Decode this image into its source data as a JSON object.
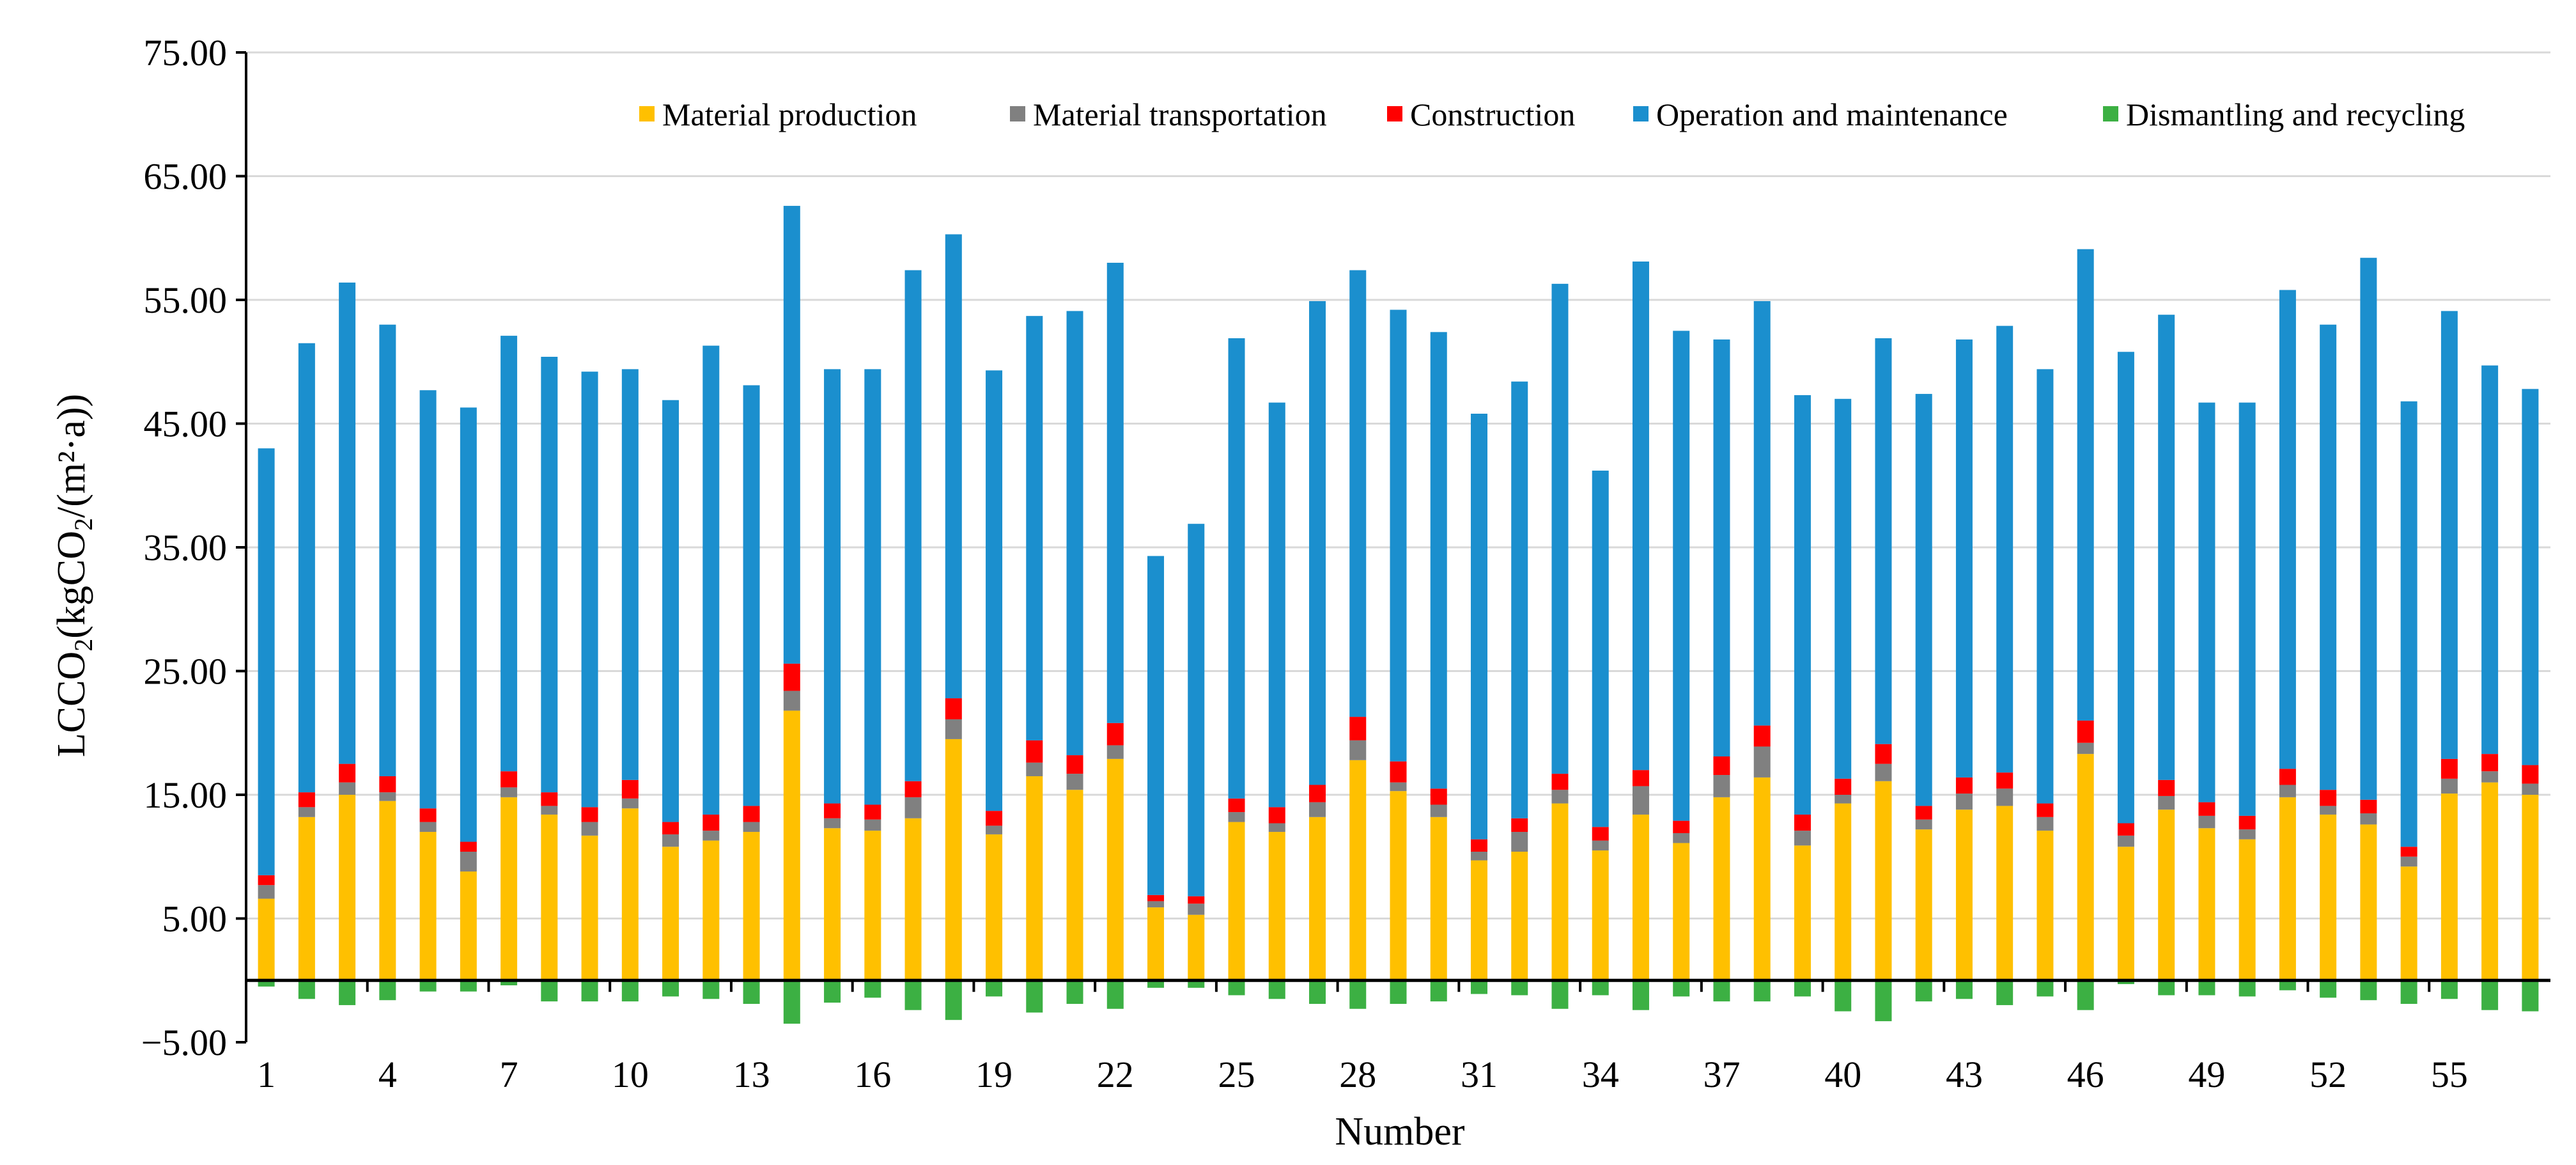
{
  "chart_data": {
    "type": "bar",
    "stacked": true,
    "xlabel": "Number",
    "ylabel_parts": {
      "prefix": "LCCO",
      "sub1": "2",
      "mid": "(kgCO",
      "sub2": "2",
      "suffix": "/(m²·a))"
    },
    "ylim": [
      -5,
      75
    ],
    "yticks": [
      -5,
      5,
      15,
      25,
      35,
      45,
      55,
      65,
      75
    ],
    "ytick_labels": [
      "−5.00",
      "5.00",
      "15.00",
      "25.00",
      "35.00",
      "45.00",
      "55.00",
      "65.00",
      "75.00"
    ],
    "grid": true,
    "legend_position": "top-right",
    "categories": [
      1,
      2,
      3,
      4,
      5,
      6,
      7,
      8,
      9,
      10,
      11,
      12,
      13,
      14,
      15,
      16,
      17,
      18,
      19,
      20,
      21,
      22,
      23,
      24,
      25,
      26,
      27,
      28,
      29,
      30,
      31,
      32,
      33,
      34,
      35,
      36,
      37,
      38,
      39,
      40,
      41,
      42,
      43,
      44,
      45,
      46,
      47,
      48,
      49,
      50,
      51,
      52,
      53,
      54,
      55,
      56,
      57
    ],
    "xtick_labels": [
      "1",
      "4",
      "7",
      "10",
      "13",
      "16",
      "19",
      "22",
      "25",
      "28",
      "31",
      "34",
      "37",
      "40",
      "43",
      "46",
      "49",
      "52",
      "55"
    ],
    "xtick_indices": [
      0,
      3,
      6,
      9,
      12,
      15,
      18,
      21,
      24,
      27,
      30,
      33,
      36,
      39,
      42,
      45,
      48,
      51,
      54
    ],
    "series": [
      {
        "name": "Material production",
        "color": "#FFC000",
        "values": [
          6.6,
          13.2,
          15.0,
          14.5,
          12.0,
          8.8,
          14.8,
          13.4,
          11.7,
          13.9,
          10.8,
          11.3,
          12.0,
          21.8,
          12.3,
          12.1,
          13.1,
          19.5,
          11.8,
          16.5,
          15.4,
          17.9,
          5.9,
          5.3,
          12.8,
          12.0,
          13.2,
          17.8,
          15.3,
          13.2,
          9.7,
          10.4,
          14.3,
          10.5,
          13.4,
          11.1,
          14.8,
          16.4,
          10.9,
          14.3,
          16.1,
          12.2,
          13.8,
          14.1,
          12.1,
          18.3,
          10.8,
          13.8,
          12.3,
          11.4,
          14.8,
          13.4,
          12.6,
          9.2,
          15.1,
          16.0,
          15.0
        ]
      },
      {
        "name": "Material transportation",
        "color": "#808080",
        "values": [
          1.1,
          0.8,
          1.0,
          0.7,
          0.8,
          1.6,
          0.8,
          0.7,
          1.1,
          0.8,
          1.0,
          0.8,
          0.8,
          1.6,
          0.8,
          0.9,
          1.7,
          1.6,
          0.7,
          1.1,
          1.3,
          1.1,
          0.5,
          0.9,
          0.8,
          0.7,
          1.2,
          1.6,
          0.7,
          1.0,
          0.7,
          1.6,
          1.1,
          0.8,
          2.3,
          0.8,
          1.8,
          2.5,
          1.2,
          0.7,
          1.4,
          0.8,
          1.3,
          1.4,
          1.1,
          0.9,
          0.9,
          1.1,
          1.0,
          0.8,
          1.0,
          0.7,
          0.9,
          0.8,
          1.2,
          0.9,
          0.9
        ]
      },
      {
        "name": "Construction",
        "color": "#FF0000",
        "values": [
          0.8,
          1.2,
          1.5,
          1.3,
          1.1,
          0.8,
          1.3,
          1.1,
          1.2,
          1.5,
          1.0,
          1.3,
          1.3,
          2.2,
          1.2,
          1.2,
          1.3,
          1.7,
          1.2,
          1.8,
          1.5,
          1.8,
          0.5,
          0.6,
          1.1,
          1.3,
          1.4,
          1.9,
          1.7,
          1.3,
          1.0,
          1.1,
          1.3,
          1.1,
          1.3,
          1.0,
          1.5,
          1.7,
          1.3,
          1.3,
          1.6,
          1.1,
          1.3,
          1.3,
          1.1,
          1.8,
          1.0,
          1.3,
          1.1,
          1.1,
          1.3,
          1.3,
          1.1,
          0.8,
          1.6,
          1.4,
          1.5
        ]
      },
      {
        "name": "Operation and maintenance",
        "color": "#1B8FCE",
        "values": [
          34.5,
          36.3,
          38.9,
          36.5,
          33.8,
          35.1,
          35.2,
          35.2,
          35.2,
          33.2,
          34.1,
          37.9,
          34.0,
          37.0,
          35.1,
          35.2,
          41.3,
          37.5,
          35.6,
          34.3,
          35.9,
          37.2,
          27.4,
          30.1,
          37.2,
          32.7,
          39.1,
          36.1,
          36.5,
          36.9,
          34.4,
          35.3,
          39.6,
          28.8,
          41.1,
          39.6,
          33.7,
          34.3,
          33.9,
          30.7,
          32.8,
          33.3,
          35.4,
          36.1,
          35.1,
          38.1,
          38.1,
          37.6,
          32.3,
          33.4,
          38.7,
          37.6,
          43.8,
          36.0,
          36.2,
          31.4,
          30.4
        ]
      },
      {
        "name": "Dismantling and recycling",
        "color": "#3CB043",
        "values": [
          -0.5,
          -1.5,
          -2.0,
          -1.6,
          -0.9,
          -0.9,
          -0.4,
          -1.7,
          -1.7,
          -1.7,
          -1.3,
          -1.5,
          -1.9,
          -3.5,
          -1.8,
          -1.4,
          -2.4,
          -3.2,
          -1.3,
          -2.6,
          -1.9,
          -2.3,
          -0.6,
          -0.6,
          -1.2,
          -1.5,
          -1.9,
          -2.3,
          -1.9,
          -1.7,
          -1.1,
          -1.2,
          -2.3,
          -1.2,
          -2.4,
          -1.3,
          -1.7,
          -1.7,
          -1.3,
          -2.5,
          -3.3,
          -1.7,
          -1.5,
          -2.0,
          -1.3,
          -2.4,
          -0.3,
          -1.2,
          -1.2,
          -1.3,
          -0.8,
          -1.4,
          -1.6,
          -1.9,
          -1.5,
          -2.4,
          -2.5
        ]
      }
    ]
  }
}
